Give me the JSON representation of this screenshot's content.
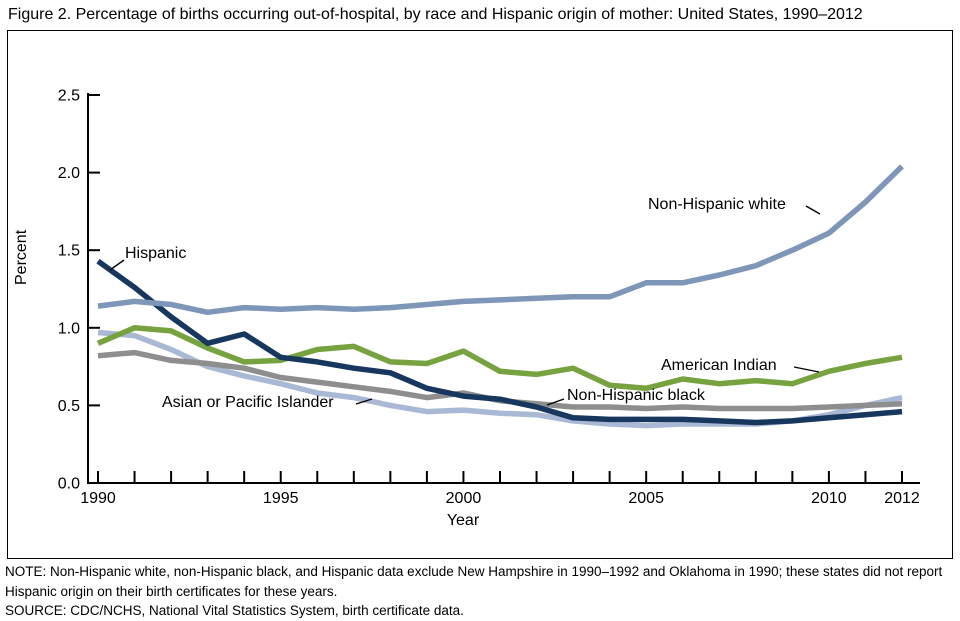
{
  "title": "Figure 2. Percentage of births occurring out-of-hospital, by race and Hispanic origin of mother: United States, 1990–2012",
  "chart_data": {
    "type": "line",
    "title": "Figure 2. Percentage of births occurring out-of-hospital, by race and Hispanic origin of mother: United States, 1990–2012",
    "xlabel": "Year",
    "ylabel": "Percent",
    "ylim": [
      0.0,
      2.5
    ],
    "yticks": [
      0.0,
      0.5,
      1.0,
      1.5,
      2.0,
      2.5
    ],
    "grid": false,
    "legend": "inline-annotations",
    "x": [
      1990,
      1991,
      1992,
      1993,
      1994,
      1995,
      1996,
      1997,
      1998,
      1999,
      2000,
      2001,
      2002,
      2003,
      2004,
      2005,
      2006,
      2007,
      2008,
      2009,
      2010,
      2011,
      2012
    ],
    "xtick_labels": [
      1990,
      1995,
      2000,
      2005,
      2010,
      2012
    ],
    "series": [
      {
        "name": "Asian or Pacific Islander",
        "color": "#a9b8d4",
        "values": [
          0.97,
          0.95,
          0.86,
          0.75,
          0.69,
          0.64,
          0.58,
          0.55,
          0.5,
          0.46,
          0.47,
          0.45,
          0.44,
          0.4,
          0.38,
          0.37,
          0.38,
          0.38,
          0.38,
          0.4,
          0.44,
          0.5,
          0.55
        ]
      },
      {
        "name": "American Indian",
        "color": "#76a33f",
        "values": [
          0.9,
          1.0,
          0.98,
          0.87,
          0.78,
          0.79,
          0.86,
          0.88,
          0.78,
          0.77,
          0.85,
          0.72,
          0.7,
          0.74,
          0.63,
          0.61,
          0.67,
          0.64,
          0.66,
          0.64,
          0.72,
          0.77,
          0.81
        ]
      },
      {
        "name": "Non-Hispanic black",
        "color": "#8e8e8e",
        "values": [
          0.82,
          0.84,
          0.79,
          0.77,
          0.74,
          0.68,
          0.65,
          0.62,
          0.59,
          0.55,
          0.58,
          0.53,
          0.51,
          0.49,
          0.49,
          0.48,
          0.49,
          0.48,
          0.48,
          0.48,
          0.49,
          0.5,
          0.51
        ]
      },
      {
        "name": "Hispanic",
        "color": "#17375e",
        "values": [
          1.43,
          1.26,
          1.07,
          0.9,
          0.96,
          0.81,
          0.78,
          0.74,
          0.71,
          0.61,
          0.56,
          0.54,
          0.49,
          0.42,
          0.41,
          0.41,
          0.41,
          0.4,
          0.39,
          0.4,
          0.42,
          0.44,
          0.46
        ]
      },
      {
        "name": "Non-Hispanic white",
        "color": "#7e96b8",
        "values": [
          1.14,
          1.17,
          1.15,
          1.1,
          1.13,
          1.12,
          1.13,
          1.12,
          1.13,
          1.15,
          1.17,
          1.18,
          1.19,
          1.2,
          1.2,
          1.29,
          1.29,
          1.34,
          1.4,
          1.5,
          1.61,
          1.81,
          2.04
        ]
      }
    ]
  },
  "annotations": {
    "hispanic": {
      "text": "Hispanic",
      "leader": [
        124,
        260,
        110,
        270
      ]
    },
    "white": {
      "text": "Non-Hispanic white",
      "leader": [
        806,
        206,
        820,
        214
      ]
    },
    "amindian": {
      "text": "American Indian",
      "leader": [
        794,
        367,
        819,
        372
      ]
    },
    "black": {
      "text": "Non-Hispanic black",
      "leader": [
        564,
        399,
        547,
        405
      ]
    },
    "asian": {
      "text": "Asian or Pacific Islander",
      "leader": [
        356,
        404,
        372,
        399
      ]
    }
  },
  "axis": {
    "ylabel": "Percent",
    "xlabel": "Year"
  },
  "notes": {
    "note": "NOTE: Non-Hispanic white, non-Hispanic black, and Hispanic data exclude New Hampshire in 1990–1992 and Oklahoma in 1990; these states did not report Hispanic origin on their birth certificates for these years.",
    "source": "SOURCE: CDC/NCHS, National Vital Statistics System, birth certificate data."
  }
}
